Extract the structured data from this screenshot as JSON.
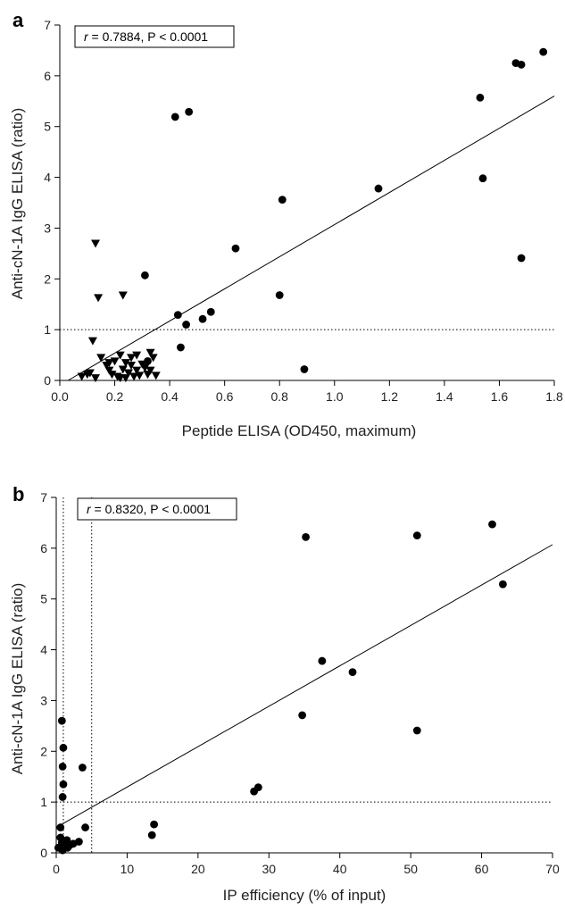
{
  "chart_data": [
    {
      "type": "scatter",
      "panel_label": "a",
      "annotation": {
        "r_label": "r",
        "rest": " = 0.7884, P < 0.0001"
      },
      "xlabel": "Peptide ELISA (OD450, maximum)",
      "ylabel": "Anti-cN-1A IgG ELISA (ratio)",
      "xlim": [
        0,
        1.8
      ],
      "ylim": [
        0,
        7
      ],
      "xticks": [
        0.0,
        0.2,
        0.4,
        0.6,
        0.8,
        1.0,
        1.2,
        1.4,
        1.6,
        1.8
      ],
      "xtick_labels": [
        "0.0",
        "0.2",
        "0.4",
        "0.6",
        "0.8",
        "1.0",
        "1.2",
        "1.4",
        "1.6",
        "1.8"
      ],
      "yticks": [
        0,
        1,
        2,
        3,
        4,
        5,
        6,
        7
      ],
      "ytick_labels": [
        "0",
        "1",
        "2",
        "3",
        "4",
        "5",
        "6",
        "7"
      ],
      "grid": false,
      "reference_lines": [
        {
          "orientation": "horizontal",
          "value": 1,
          "style": "dotted"
        }
      ],
      "regression_line": {
        "x1": 0.03,
        "y1": 0.0,
        "x2": 1.8,
        "y2": 5.6
      },
      "series": [
        {
          "marker": "circle",
          "points": [
            [
              0.42,
              5.19
            ],
            [
              0.47,
              5.29
            ],
            [
              0.31,
              2.07
            ],
            [
              0.64,
              2.6
            ],
            [
              0.81,
              3.56
            ],
            [
              0.8,
              1.68
            ],
            [
              0.89,
              0.22
            ],
            [
              1.16,
              3.78
            ],
            [
              1.53,
              5.57
            ],
            [
              1.54,
              3.98
            ],
            [
              1.66,
              6.25
            ],
            [
              1.68,
              6.22
            ],
            [
              1.76,
              6.47
            ],
            [
              1.68,
              2.41
            ],
            [
              0.43,
              1.29
            ],
            [
              0.52,
              1.21
            ],
            [
              0.55,
              1.35
            ],
            [
              0.46,
              1.1
            ],
            [
              0.44,
              0.65
            ],
            [
              0.32,
              0.38
            ]
          ]
        },
        {
          "marker": "triangle-down",
          "points": [
            [
              0.13,
              2.7
            ],
            [
              0.14,
              1.63
            ],
            [
              0.23,
              1.68
            ],
            [
              0.12,
              0.78
            ],
            [
              0.08,
              0.08
            ],
            [
              0.1,
              0.12
            ],
            [
              0.11,
              0.15
            ],
            [
              0.13,
              0.05
            ],
            [
              0.15,
              0.45
            ],
            [
              0.17,
              0.3
            ],
            [
              0.18,
              0.2
            ],
            [
              0.19,
              0.12
            ],
            [
              0.2,
              0.38
            ],
            [
              0.21,
              0.08
            ],
            [
              0.22,
              0.05
            ],
            [
              0.22,
              0.5
            ],
            [
              0.23,
              0.22
            ],
            [
              0.24,
              0.35
            ],
            [
              0.25,
              0.15
            ],
            [
              0.26,
              0.45
            ],
            [
              0.26,
              0.3
            ],
            [
              0.27,
              0.08
            ],
            [
              0.28,
              0.2
            ],
            [
              0.28,
              0.5
            ],
            [
              0.29,
              0.1
            ],
            [
              0.3,
              0.32
            ],
            [
              0.31,
              0.25
            ],
            [
              0.32,
              0.12
            ],
            [
              0.33,
              0.55
            ],
            [
              0.33,
              0.2
            ],
            [
              0.34,
              0.45
            ],
            [
              0.35,
              0.1
            ],
            [
              0.24,
              0.05
            ],
            [
              0.18,
              0.35
            ]
          ]
        }
      ]
    },
    {
      "type": "scatter",
      "panel_label": "b",
      "annotation": {
        "r_label": "r",
        "rest": " = 0.8320, P < 0.0001"
      },
      "xlabel": "IP efficiency (% of input)",
      "ylabel": "Anti-cN-1A IgG ELISA (ratio)",
      "xlim": [
        0,
        70
      ],
      "ylim": [
        0,
        7
      ],
      "xticks": [
        0,
        10,
        20,
        30,
        40,
        50,
        60,
        70
      ],
      "xtick_labels": [
        "0",
        "10",
        "20",
        "30",
        "40",
        "50",
        "60",
        "70"
      ],
      "yticks": [
        0,
        1,
        2,
        3,
        4,
        5,
        6,
        7
      ],
      "ytick_labels": [
        "0",
        "1",
        "2",
        "3",
        "4",
        "5",
        "6",
        "7"
      ],
      "grid": false,
      "reference_lines": [
        {
          "orientation": "horizontal",
          "value": 1,
          "style": "dotted"
        },
        {
          "orientation": "vertical",
          "value": 1,
          "style": "dotted"
        },
        {
          "orientation": "vertical",
          "value": 5,
          "style": "dotted"
        }
      ],
      "regression_line": {
        "x1": 0,
        "y1": 0.5,
        "x2": 70,
        "y2": 6.07
      },
      "series": [
        {
          "marker": "circle",
          "points": [
            [
              35.2,
              6.22
            ],
            [
              50.9,
              6.25
            ],
            [
              61.5,
              6.47
            ],
            [
              63.0,
              5.29
            ],
            [
              37.5,
              3.78
            ],
            [
              41.8,
              3.56
            ],
            [
              34.7,
              2.71
            ],
            [
              50.9,
              2.41
            ],
            [
              28.5,
              1.29
            ],
            [
              27.9,
              1.21
            ],
            [
              13.8,
              0.56
            ],
            [
              13.5,
              0.35
            ],
            [
              0.8,
              2.6
            ],
            [
              1.0,
              2.07
            ],
            [
              0.9,
              1.7
            ],
            [
              1.0,
              1.35
            ],
            [
              0.9,
              1.1
            ],
            [
              3.7,
              1.68
            ],
            [
              4.1,
              0.5
            ],
            [
              0.6,
              0.5
            ],
            [
              0.6,
              0.3
            ],
            [
              0.8,
              0.2
            ],
            [
              1.2,
              0.1
            ],
            [
              1.5,
              0.25
            ],
            [
              1.9,
              0.15
            ],
            [
              2.4,
              0.18
            ],
            [
              3.2,
              0.22
            ],
            [
              0.3,
              0.1
            ],
            [
              0.9,
              0.05
            ],
            [
              1.6,
              0.1
            ]
          ]
        }
      ]
    }
  ]
}
